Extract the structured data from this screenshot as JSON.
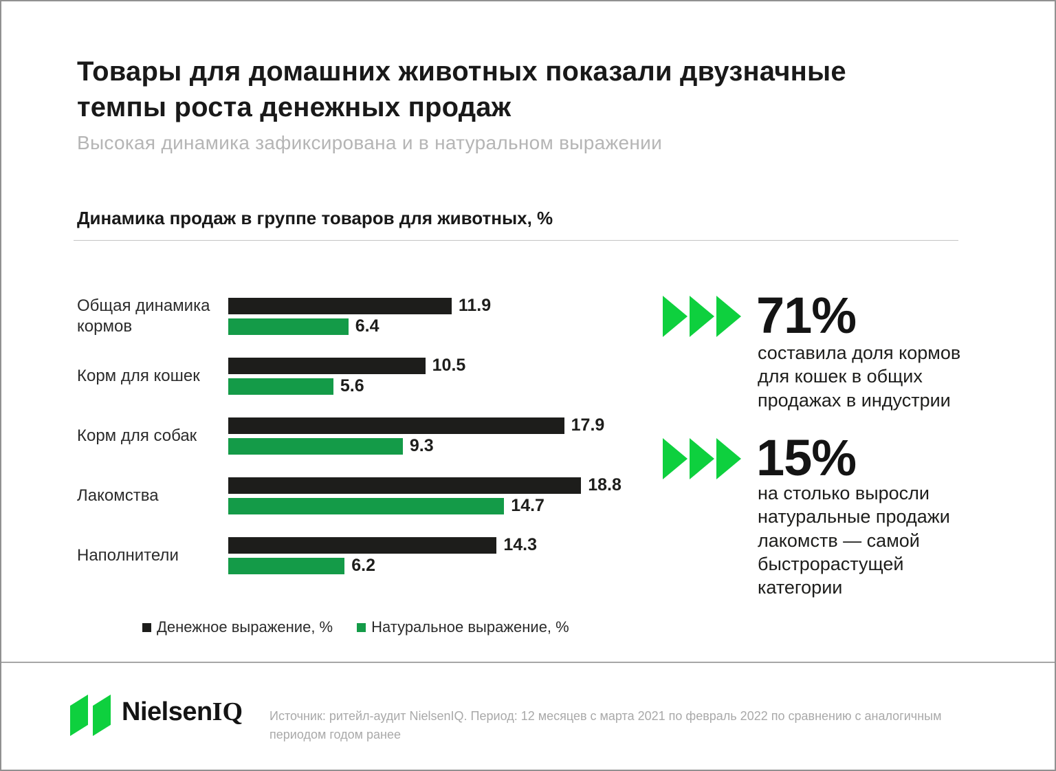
{
  "slide": {
    "title": "Товары для домашних животных показали двузначные темпы роста денежных продаж",
    "subtitle": "Высокая динамика зафиксирована и в натуральном выражении",
    "section_heading": "Динамика продаж в группе товаров для животных, %"
  },
  "chart_data": {
    "type": "bar",
    "orientation": "horizontal",
    "title": "Динамика продаж в группе товаров для животных, %",
    "categories": [
      "Общая динамика кормов",
      "Корм для кошек",
      "Корм для собак",
      "Лакомства",
      "Наполнители"
    ],
    "series": [
      {
        "name": "Денежное выражение, %",
        "color": "#1d1d1b",
        "values": [
          11.9,
          10.5,
          17.9,
          18.8,
          14.3
        ]
      },
      {
        "name": "Натуральное выражение, %",
        "color": "#149b48",
        "values": [
          6.4,
          5.6,
          9.3,
          14.7,
          6.2
        ]
      }
    ],
    "xlim": [
      0,
      20
    ],
    "grid": false,
    "value_labels": true,
    "legend_position": "bottom"
  },
  "callouts": [
    {
      "icon": "triple-arrow-right-icon",
      "value": "71%",
      "text": "составила доля кормов для кошек в общих продажах в индустрии"
    },
    {
      "icon": "triple-arrow-right-icon",
      "value": "15%",
      "text": "на столько выросли натуральные продажи лакомств — самой быстрорастущей категории"
    }
  ],
  "footer": {
    "logo": {
      "icon": "nielseniq-double-slash-icon",
      "name": "Nielsen",
      "suffix": "IQ"
    },
    "source": "Источник: ритейл-аудит NielsenIQ. Период: 12 месяцев с марта 2021 по февраль 2022 по сравнению с аналогичным периодом годом ранее"
  },
  "colors": {
    "money_bar": "#1d1d1b",
    "volume_bar": "#149b48",
    "accent_green": "#0ed03e",
    "title_text": "#191919",
    "subtitle_gray": "#b5b5b5",
    "source_gray": "#a9a9a9"
  }
}
